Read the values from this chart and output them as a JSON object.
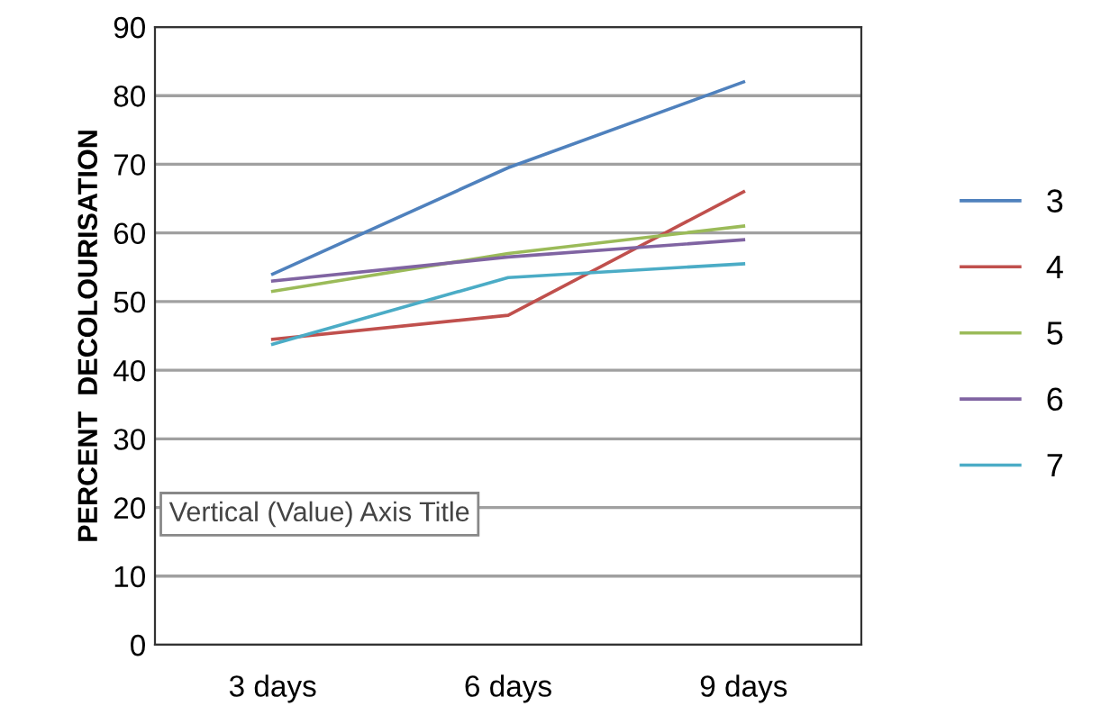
{
  "chart_data": {
    "type": "line",
    "ylabel": "PERCENT  DECOLOURISATION",
    "categories": [
      "3 days",
      "6 days",
      "9 days"
    ],
    "series": [
      {
        "name": "3",
        "color": "#4f81bd",
        "values": [
          54,
          69.5,
          82
        ]
      },
      {
        "name": "4",
        "color": "#c0504d",
        "values": [
          44.5,
          48,
          66
        ]
      },
      {
        "name": "5",
        "color": "#9bbb59",
        "values": [
          51.5,
          57,
          61
        ]
      },
      {
        "name": "6",
        "color": "#8064a2",
        "values": [
          53,
          56.5,
          59
        ]
      },
      {
        "name": "7",
        "color": "#4bacc6",
        "values": [
          43.8,
          53.5,
          55.5
        ]
      }
    ],
    "ylim": [
      0,
      90
    ],
    "yticks": [
      0,
      10,
      20,
      30,
      40,
      50,
      60,
      70,
      80,
      90
    ],
    "grid": "y",
    "legend": "right",
    "marker": "none",
    "line_style": "solid",
    "annotations": [
      "Vertical (Value) Axis Title"
    ]
  }
}
